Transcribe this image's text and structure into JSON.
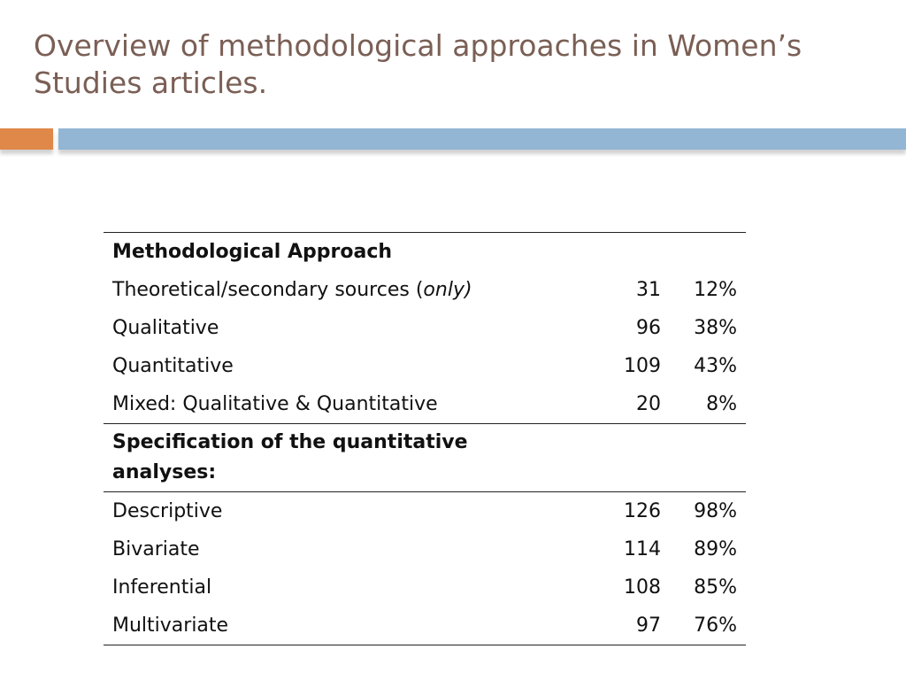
{
  "slide": {
    "title": "Overview of methodological approaches in Women’s Studies articles."
  },
  "colors": {
    "title": "#7a5f55",
    "accent_orange": "#e0874a",
    "accent_blue": "#93b6d4"
  },
  "table": {
    "section1": {
      "heading": "Methodological Approach",
      "rows": [
        {
          "label": "Theoretical/secondary sources (",
          "label_italic": "only)",
          "count": "31",
          "percent": "12%"
        },
        {
          "label": "Qualitative",
          "count": "96",
          "percent": "38%"
        },
        {
          "label": "Quantitative",
          "count": "109",
          "percent": "43%"
        },
        {
          "label": "Mixed: Qualitative & Quantitative",
          "count": "20",
          "percent": "8%"
        }
      ]
    },
    "section2": {
      "heading": "Specification of the quantitative analyses:",
      "rows": [
        {
          "label": "Descriptive",
          "count": "126",
          "percent": "98%"
        },
        {
          "label": "Bivariate",
          "count": "114",
          "percent": "89%"
        },
        {
          "label": "Inferential",
          "count": "108",
          "percent": "85%"
        },
        {
          "label": "Multivariate",
          "count": "97",
          "percent": "76%"
        }
      ]
    }
  }
}
